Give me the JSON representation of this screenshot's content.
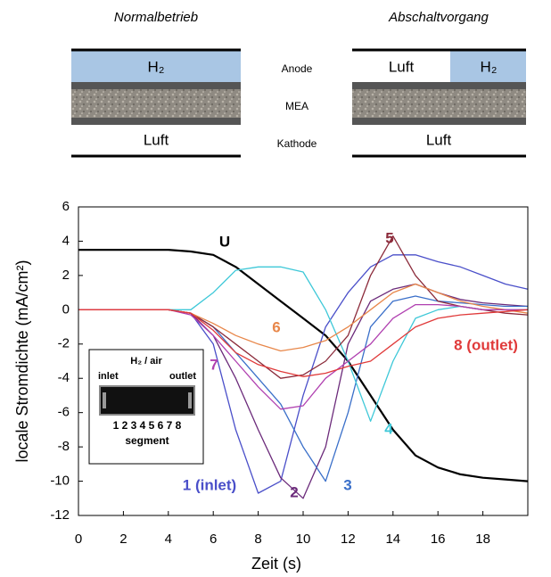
{
  "schematic": {
    "left_title": "Normalbetrieb",
    "right_title": "Abschaltvorgang",
    "left_anode": "H₂",
    "left_cathode": "Luft",
    "right_anode_left": "Luft",
    "right_anode_right": "H₂",
    "right_cathode": "Luft",
    "anode_label": "Anode",
    "mea_label": "MEA",
    "cathode_label": "Kathode"
  },
  "inset": {
    "title": "H₂ / air",
    "inlet": "inlet",
    "outlet": "outlet",
    "segments": "1 2 3 4 5 6 7 8",
    "caption": "segment"
  },
  "chart_data": {
    "type": "line",
    "x_label": "Zeit (s)",
    "y_label": "locale Stromdichte (mA/cm²)",
    "x": [
      0,
      1,
      2,
      3,
      4,
      5,
      6,
      7,
      8,
      9,
      10,
      11,
      12,
      13,
      14,
      15,
      16,
      17,
      18,
      19,
      20
    ],
    "xlim": [
      0,
      20
    ],
    "xticks": [
      0,
      2,
      4,
      6,
      8,
      10,
      12,
      14,
      16,
      18
    ],
    "ylim": [
      -12,
      6
    ],
    "yticks": [
      -12,
      -10,
      -8,
      -6,
      -4,
      -2,
      0,
      2,
      4,
      6
    ],
    "series": [
      {
        "name": "U",
        "color": "#000000",
        "values": [
          3.5,
          3.5,
          3.5,
          3.5,
          3.5,
          3.4,
          3.2,
          2.5,
          1.5,
          0.5,
          -0.5,
          -1.5,
          -3,
          -5,
          -7,
          -8.5,
          -9.2,
          -9.6,
          -9.8,
          -9.9,
          -10
        ]
      },
      {
        "name": "1 (inlet)",
        "color": "#4a4fc9",
        "values": [
          0,
          0,
          0,
          0,
          0,
          -0.2,
          -2,
          -7,
          -10.7,
          -10,
          -5,
          -1,
          1,
          2.5,
          3.2,
          3.2,
          2.8,
          2.5,
          2,
          1.5,
          1.2
        ]
      },
      {
        "name": "2",
        "color": "#6b2a7a",
        "values": [
          0,
          0,
          0,
          0,
          0,
          -0.2,
          -1.5,
          -4,
          -7,
          -9.8,
          -11,
          -8,
          -2,
          0.5,
          1.2,
          1.5,
          1,
          0.6,
          0.4,
          0.3,
          0.2
        ]
      },
      {
        "name": "3",
        "color": "#3a6fc9",
        "values": [
          0,
          0,
          0,
          0,
          0,
          -0.2,
          -1,
          -2.5,
          -4,
          -5.5,
          -8,
          -10,
          -6,
          -1,
          0.5,
          0.8,
          0.5,
          0.4,
          0.3,
          0.2,
          0.2
        ]
      },
      {
        "name": "4",
        "color": "#3ec8d8",
        "values": [
          0,
          0,
          0,
          0,
          0,
          0,
          1,
          2.3,
          2.5,
          2.5,
          2.2,
          0,
          -3,
          -6.5,
          -3,
          -0.5,
          0,
          0.2,
          0,
          0,
          0
        ]
      },
      {
        "name": "5",
        "color": "#8b2a3a",
        "values": [
          0,
          0,
          0,
          0,
          0,
          -0.2,
          -1,
          -2,
          -3,
          -4,
          -3.8,
          -3,
          -1.5,
          2,
          4.3,
          2,
          0.5,
          0.2,
          0,
          -0.2,
          -0.3
        ]
      },
      {
        "name": "6",
        "color": "#e8874a",
        "values": [
          0,
          0,
          0,
          0,
          0,
          -0.2,
          -0.8,
          -1.5,
          -2,
          -2.4,
          -2.2,
          -1.8,
          -1,
          0,
          1,
          1.5,
          1,
          0.5,
          0.2,
          0,
          -0.2
        ]
      },
      {
        "name": "7",
        "color": "#b040b0",
        "values": [
          0,
          0,
          0,
          0,
          0,
          -0.3,
          -1.5,
          -3,
          -4.5,
          -5.8,
          -5.6,
          -4,
          -3,
          -2,
          -0.5,
          0.3,
          0.3,
          0.2,
          0,
          0,
          0
        ]
      },
      {
        "name": "8 (outlet)",
        "color": "#e03a3a",
        "values": [
          0,
          0,
          0,
          0,
          0,
          -0.2,
          -1.2,
          -2.5,
          -3.2,
          -3.6,
          -3.9,
          -3.7,
          -3.3,
          -3,
          -2,
          -1,
          -0.5,
          -0.3,
          -0.2,
          -0.1,
          0
        ]
      }
    ]
  }
}
